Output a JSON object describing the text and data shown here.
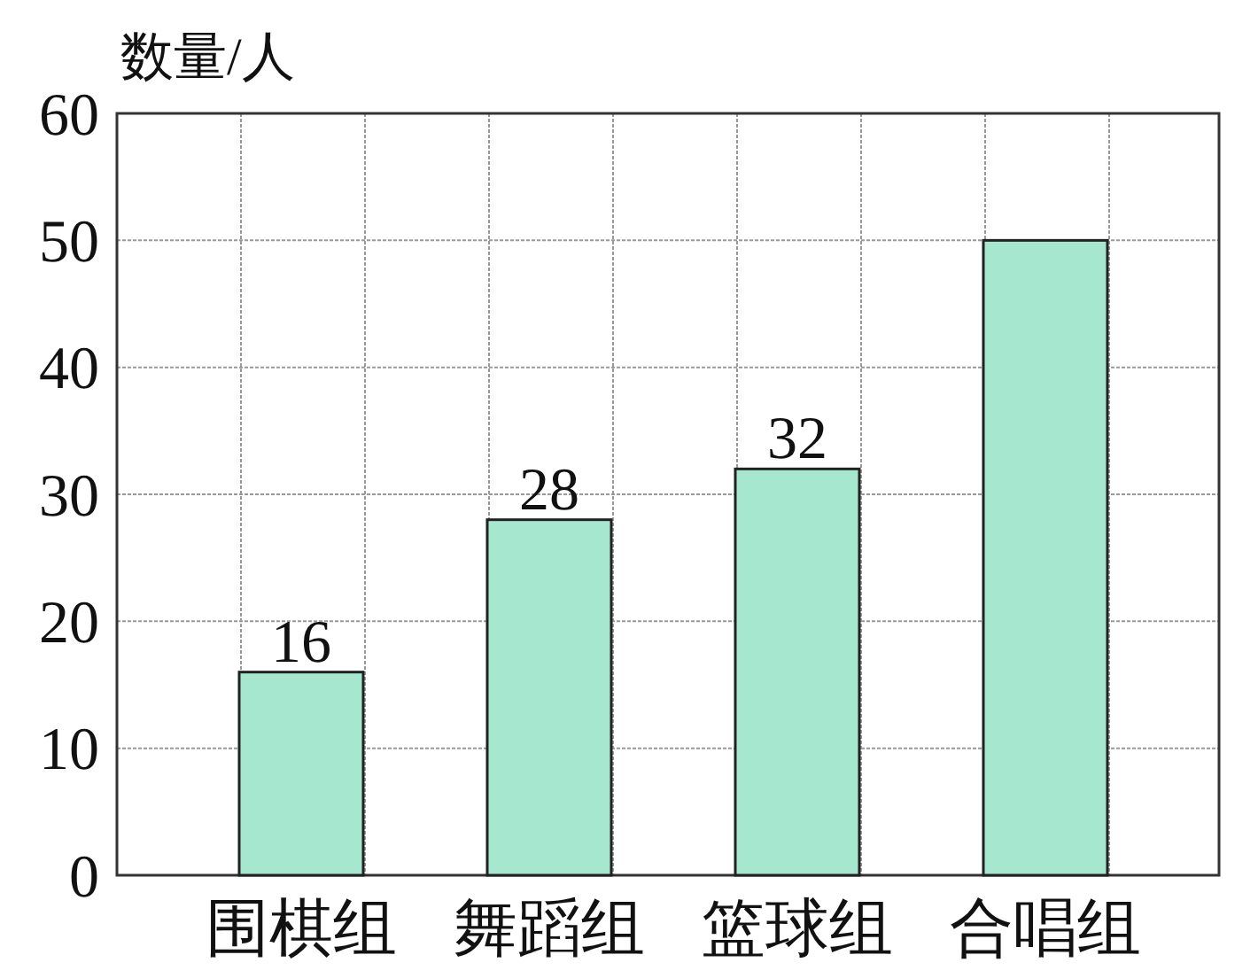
{
  "chart_data": {
    "type": "bar",
    "ylabel": "数量/人",
    "categories": [
      "围棋组",
      "舞蹈组",
      "篮球组",
      "合唱组"
    ],
    "values": [
      16,
      28,
      32,
      50
    ],
    "value_labels": [
      "16",
      "28",
      "32",
      null
    ],
    "color": "#a6e8cf",
    "ylim": [
      0,
      60
    ],
    "yticks": [
      0,
      10,
      20,
      30,
      40,
      50,
      60
    ],
    "grid": true
  }
}
